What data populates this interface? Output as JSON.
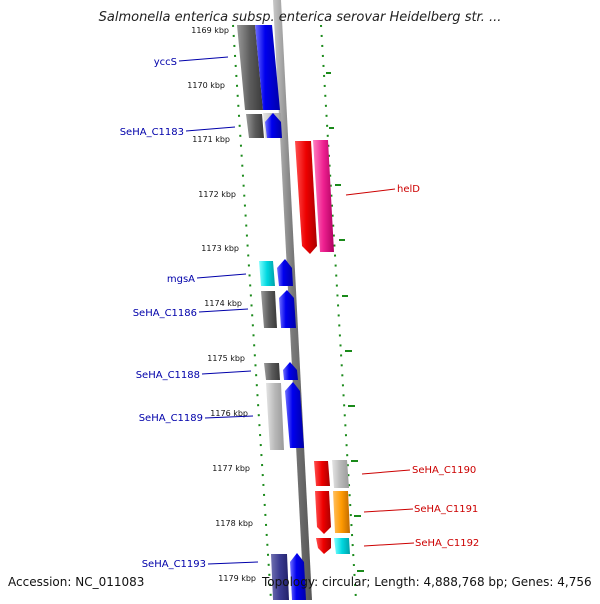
{
  "title": "Salmonella enterica subsp. enterica serovar Heidelberg str. ...",
  "accession": "Accession: NC_011083",
  "topology": "Topology: circular; Length: 4,888,768 bp; Genes: 4,756",
  "ticks": [
    "1169 kbp",
    "1170 kbp",
    "1171 kbp",
    "1172 kbp",
    "1173 kbp",
    "1174 kbp",
    "1175 kbp",
    "1176 kbp",
    "1177 kbp",
    "1178 kbp",
    "1179 kbp"
  ],
  "genes_left": [
    "yccS",
    "SeHA_C1183",
    "mgsA",
    "SeHA_C1186",
    "SeHA_C1188",
    "SeHA_C1189",
    "SeHA_C1193"
  ],
  "genes_right": [
    "helD",
    "SeHA_C1190",
    "SeHA_C1191",
    "SeHA_C1192"
  ],
  "colors": {
    "left_label": "#0000aa",
    "right_label": "#cc0000",
    "tick_dot": "#1a8a1a"
  }
}
